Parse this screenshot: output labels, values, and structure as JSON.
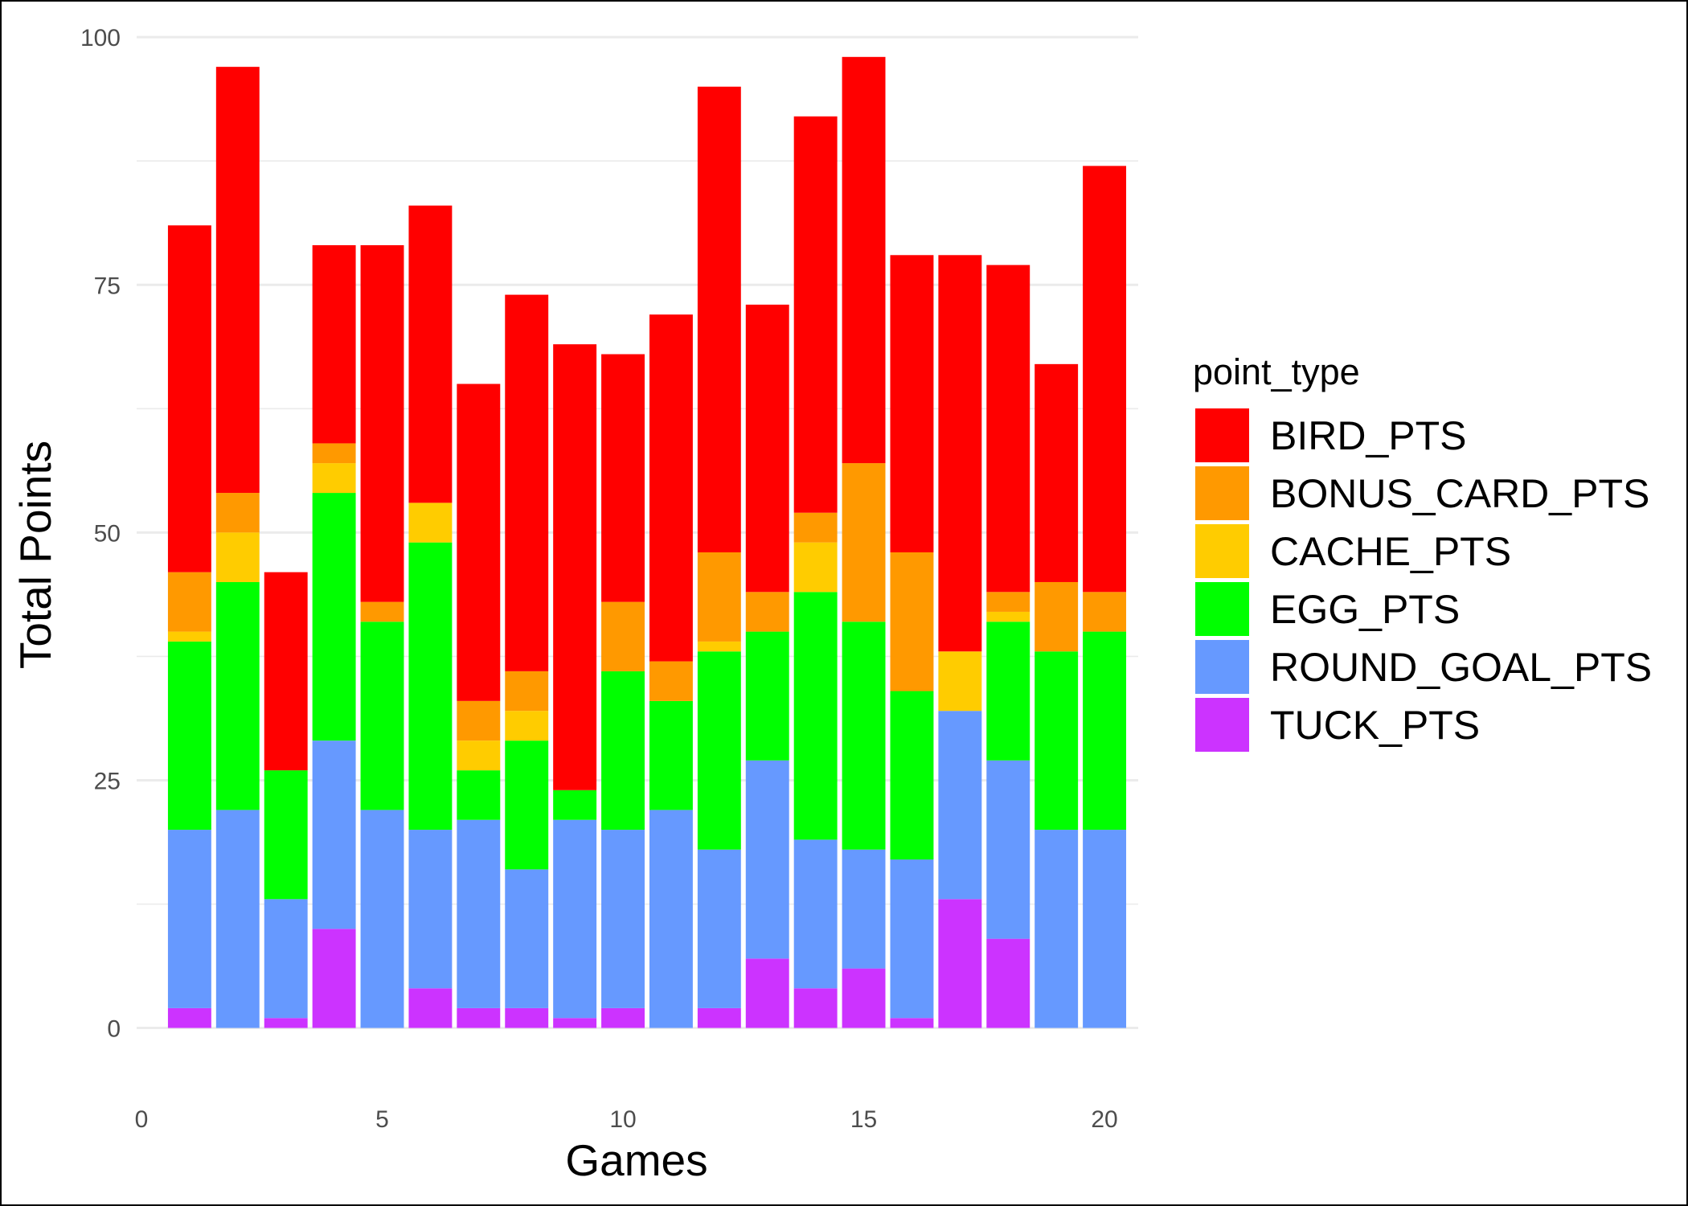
{
  "chart_data": {
    "type": "bar",
    "stacked": true,
    "title": "",
    "xlabel": "Games",
    "ylabel": "Total Points",
    "xlim": [
      -0.1,
      20.7
    ],
    "ylim": [
      -4.5,
      100.5
    ],
    "x_ticks": [
      0,
      5,
      10,
      15,
      20
    ],
    "y_ticks": [
      0,
      25,
      50,
      75,
      100
    ],
    "grid": true,
    "legend": {
      "title": "point_type",
      "placement": "right"
    },
    "x": [
      1,
      2,
      3,
      4,
      5,
      6,
      7,
      8,
      9,
      10,
      11,
      12,
      13,
      14,
      15,
      16,
      17,
      18,
      19,
      20
    ],
    "series": [
      {
        "name": "TUCK_PTS",
        "color": "#cc33ff",
        "values": [
          2,
          0,
          1,
          10,
          0,
          4,
          2,
          2,
          1,
          2,
          0,
          2,
          7,
          4,
          6,
          1,
          13,
          9,
          0,
          0
        ]
      },
      {
        "name": "ROUND_GOAL_PTS",
        "color": "#6699ff",
        "values": [
          18,
          22,
          12,
          19,
          22,
          16,
          19,
          14,
          20,
          18,
          22,
          16,
          20,
          15,
          12,
          16,
          19,
          18,
          20,
          20
        ]
      },
      {
        "name": "EGG_PTS",
        "color": "#00ff00",
        "values": [
          19,
          23,
          13,
          25,
          19,
          29,
          5,
          13,
          3,
          16,
          11,
          20,
          13,
          25,
          23,
          17,
          0,
          14,
          18,
          20
        ]
      },
      {
        "name": "CACHE_PTS",
        "color": "#ffcc00",
        "values": [
          1,
          5,
          0,
          3,
          0,
          4,
          3,
          3,
          0,
          0,
          0,
          1,
          0,
          5,
          0,
          0,
          6,
          1,
          0,
          0
        ]
      },
      {
        "name": "BONUS_CARD_PTS",
        "color": "#ff9900",
        "values": [
          6,
          4,
          0,
          2,
          2,
          0,
          4,
          4,
          0,
          7,
          4,
          9,
          4,
          3,
          16,
          14,
          0,
          2,
          7,
          4
        ]
      },
      {
        "name": "BIRD_PTS",
        "color": "#ff0000",
        "values": [
          35,
          43,
          20,
          20,
          36,
          30,
          32,
          38,
          45,
          25,
          35,
          47,
          29,
          40,
          41,
          30,
          40,
          33,
          22,
          43
        ]
      }
    ],
    "totals": [
      81,
      97,
      46,
      79,
      79,
      83,
      65,
      74,
      69,
      68,
      72,
      95,
      73,
      92,
      98,
      78,
      78,
      77,
      67,
      87
    ]
  }
}
